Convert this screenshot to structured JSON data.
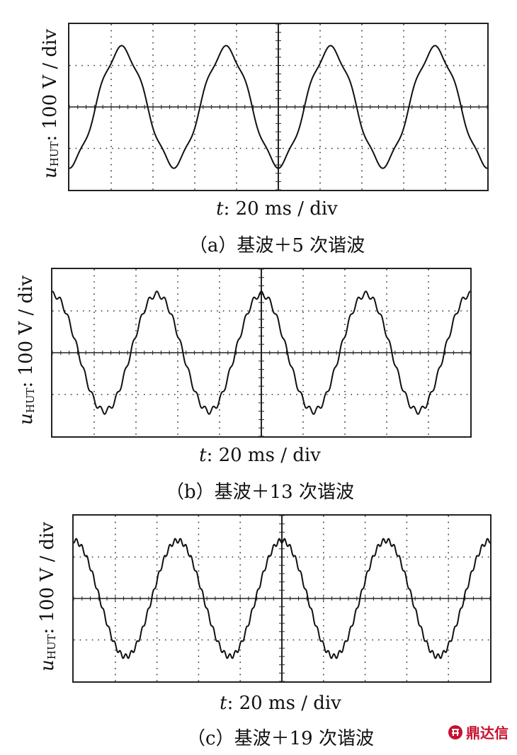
{
  "chart_data": [
    {
      "type": "line",
      "panel": "a",
      "ylabel": {
        "var": "u",
        "sub": "HUT",
        "rest": ": 100 V / div"
      },
      "xlabel": {
        "var": "t",
        "rest": ": 20 ms / div"
      },
      "caption": "（a）基波＋5 次谐波",
      "x_divisions": 10,
      "y_divisions": 4,
      "xlim": [
        0,
        10
      ],
      "ylim": [
        -2,
        2
      ],
      "grid": "dotted",
      "harmonic_order": 5,
      "fundamental_amplitude_div": 1.4,
      "harmonic_amplitude_div": 0.08,
      "cycles": 4,
      "phase_start": "trough"
    },
    {
      "type": "line",
      "panel": "b",
      "ylabel": {
        "var": "u",
        "sub": "HUT",
        "rest": ": 100 V / div"
      },
      "xlabel": {
        "var": "t",
        "rest": ": 20 ms / div"
      },
      "caption": "（b）基波＋13 次谐波",
      "x_divisions": 10,
      "y_divisions": 4,
      "xlim": [
        0,
        10
      ],
      "ylim": [
        -2,
        2
      ],
      "grid": "dotted",
      "harmonic_order": 13,
      "fundamental_amplitude_div": 1.4,
      "harmonic_amplitude_div": 0.07,
      "cycles": 4,
      "phase_start": "peak"
    },
    {
      "type": "line",
      "panel": "c",
      "ylabel": {
        "var": "u",
        "sub": "HUT",
        "rest": ": 100 V / div"
      },
      "xlabel": {
        "var": "t",
        "rest": ": 20 ms / div"
      },
      "caption": "（c）基波＋19 次谐波",
      "x_divisions": 10,
      "y_divisions": 4,
      "xlim": [
        0,
        10
      ],
      "ylim": [
        -2,
        2
      ],
      "grid": "dotted",
      "harmonic_order": 19,
      "fundamental_amplitude_div": 1.4,
      "harmonic_amplitude_div": 0.06,
      "cycles": 4,
      "phase_start": "peak"
    }
  ],
  "watermark": {
    "text": "鼎达信"
  },
  "colors": {
    "trace": "#111111",
    "grid": "#333333",
    "watermark": "#c8102e"
  }
}
